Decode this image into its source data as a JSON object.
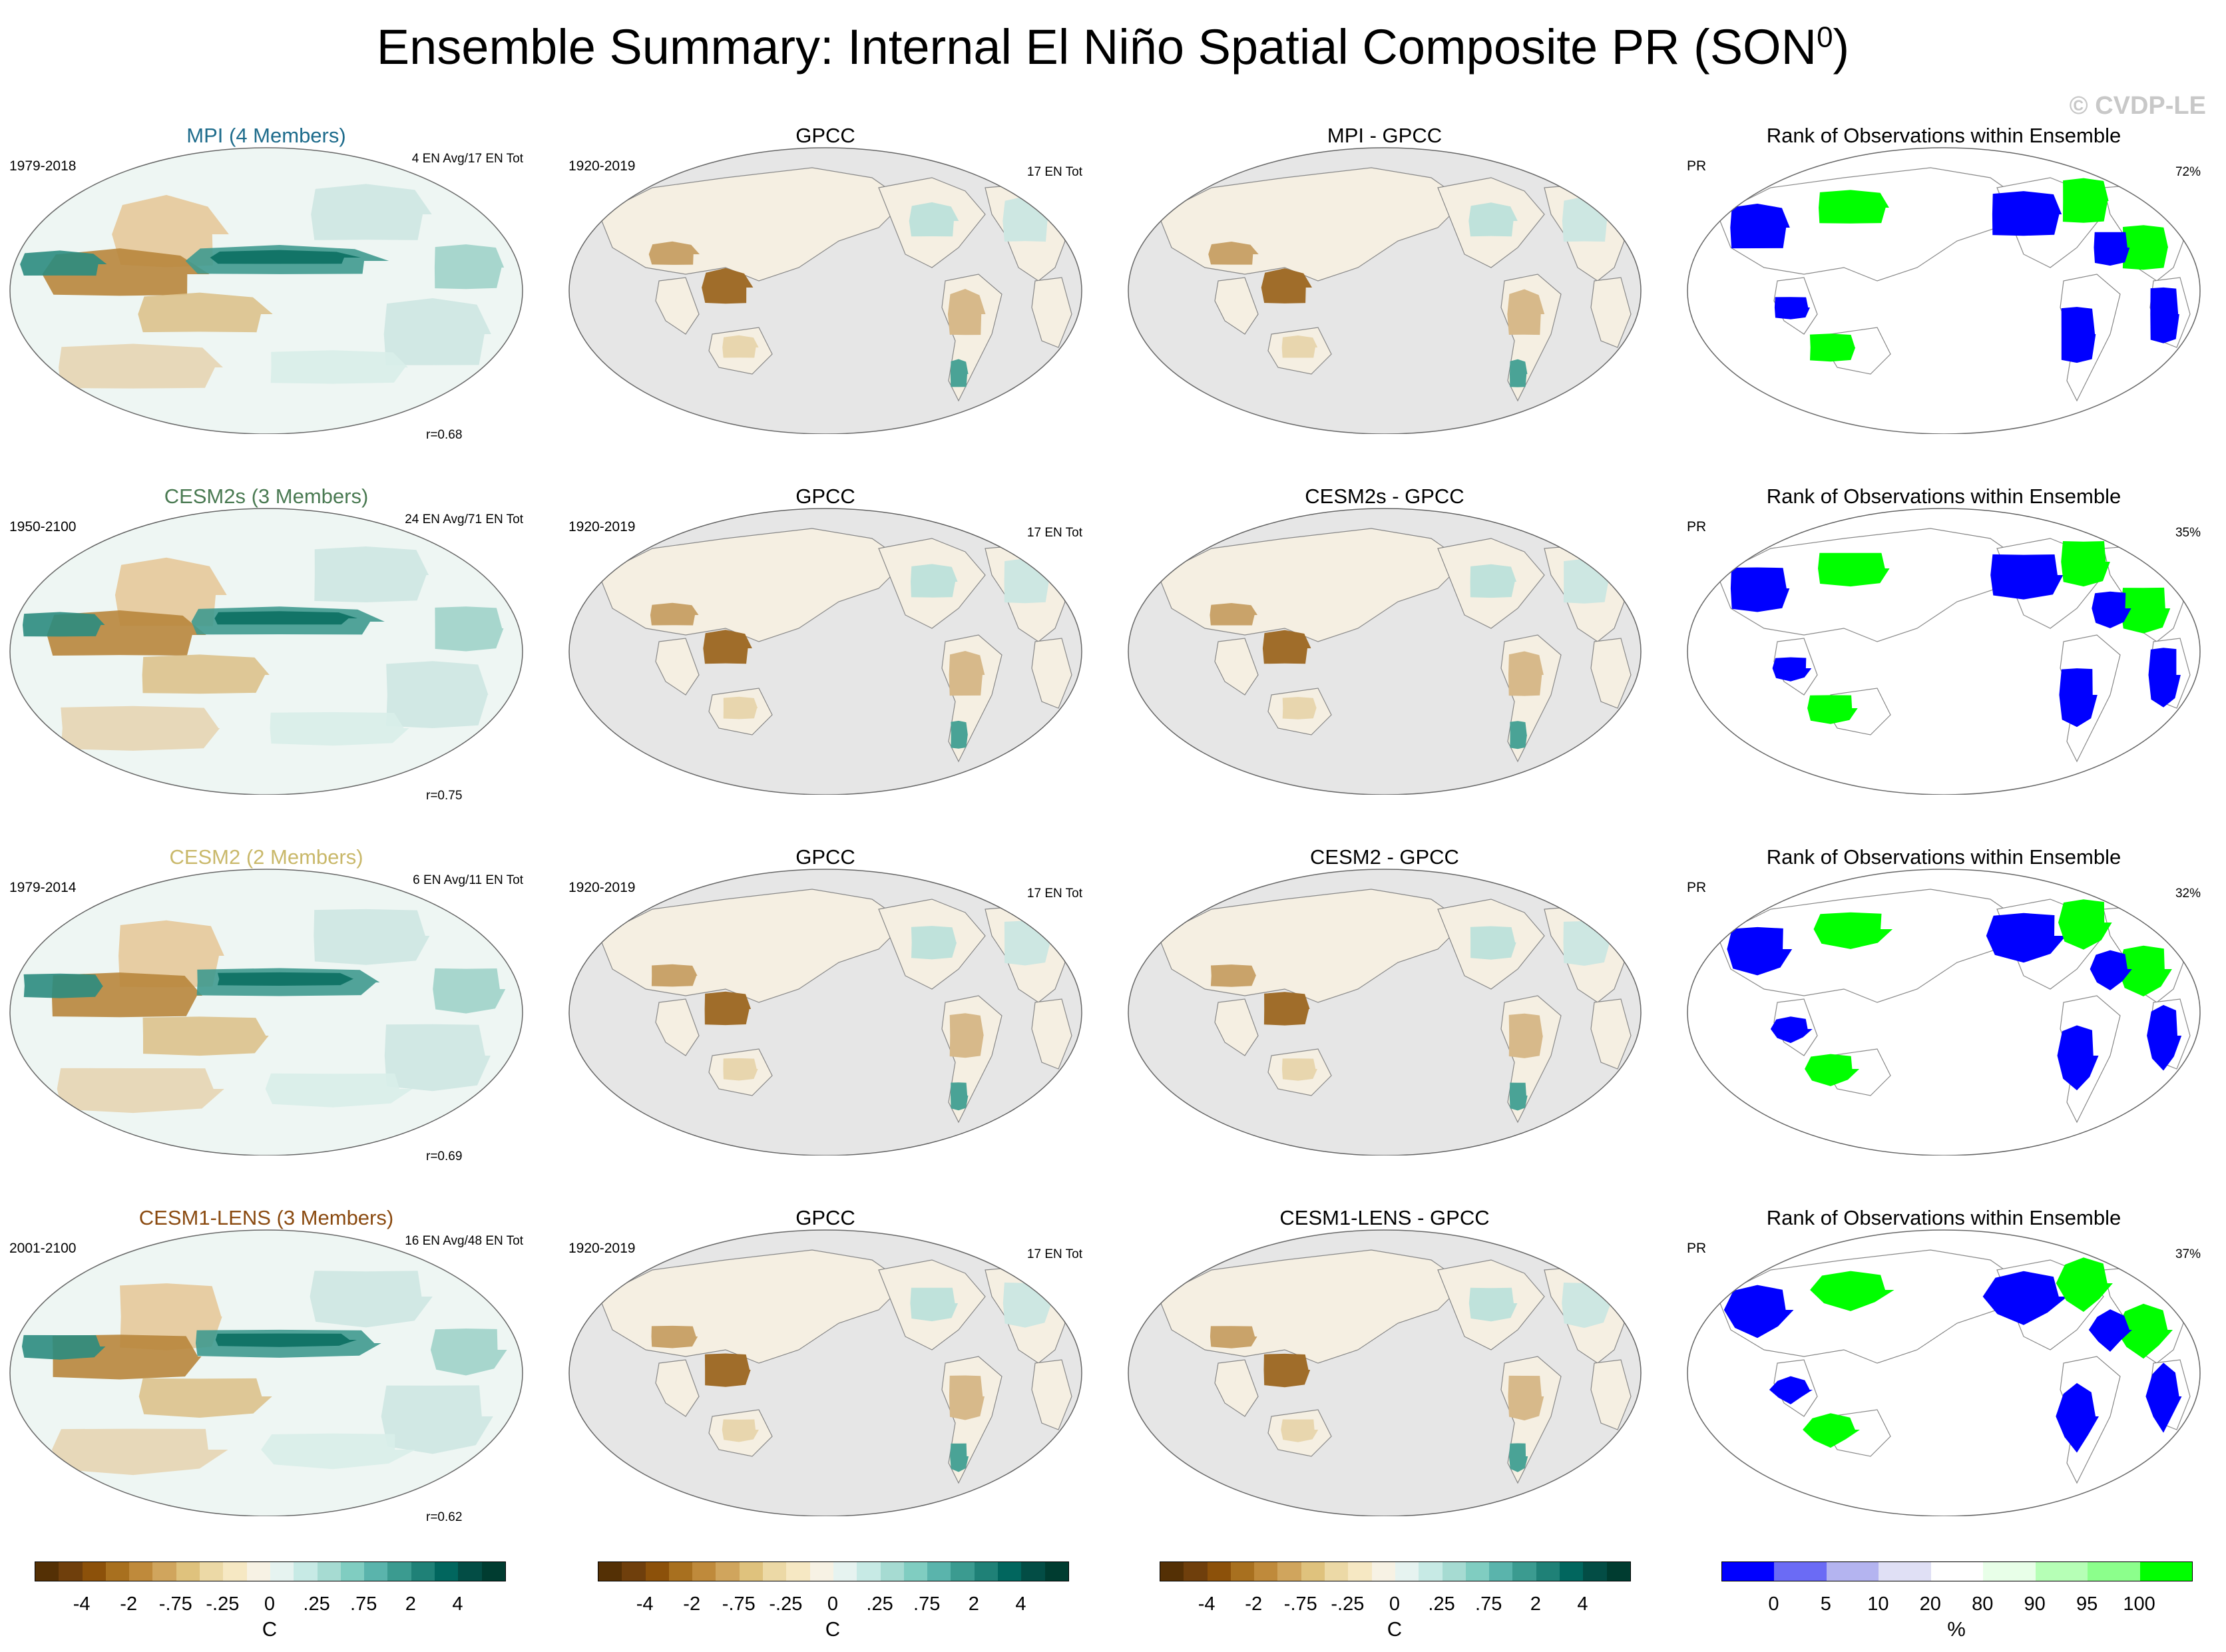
{
  "title": {
    "text": "Ensemble Summary: Internal El Niño Spatial Composite PR (SON",
    "sup": "0",
    "close": ")"
  },
  "watermark": "© CVDP-LE",
  "rows": [
    {
      "model": {
        "title": "MPI (4 Members)",
        "title_color": "#1e6c8c",
        "period": "1979-2018",
        "count": "4 EN Avg/17 EN Tot",
        "corr": "r=0.68"
      },
      "obs": {
        "title": "GPCC",
        "period": "1920-2019",
        "count": "17 EN Tot"
      },
      "diff": {
        "title": "MPI - GPCC"
      },
      "rank": {
        "title": "Rank of Observations within Ensemble",
        "var": "PR",
        "pct": "72%"
      }
    },
    {
      "model": {
        "title": "CESM2s (3 Members)",
        "title_color": "#4a7a52",
        "period": "1950-2100",
        "count": "24 EN Avg/71 EN Tot",
        "corr": "r=0.75"
      },
      "obs": {
        "title": "GPCC",
        "period": "1920-2019",
        "count": "17 EN Tot"
      },
      "diff": {
        "title": "CESM2s - GPCC"
      },
      "rank": {
        "title": "Rank of Observations within Ensemble",
        "var": "PR",
        "pct": "35%"
      }
    },
    {
      "model": {
        "title": "CESM2 (2 Members)",
        "title_color": "#c9b86a",
        "period": "1979-2014",
        "count": "6 EN Avg/11 EN Tot",
        "corr": "r=0.69"
      },
      "obs": {
        "title": "GPCC",
        "period": "1920-2019",
        "count": "17 EN Tot"
      },
      "diff": {
        "title": "CESM2 - GPCC"
      },
      "rank": {
        "title": "Rank of Observations within Ensemble",
        "var": "PR",
        "pct": "32%"
      }
    },
    {
      "model": {
        "title": "CESM1-LENS (3 Members)",
        "title_color": "#8a4a10",
        "period": "2001-2100",
        "count": "16 EN Avg/48 EN Tot",
        "corr": "r=0.62"
      },
      "obs": {
        "title": "GPCC",
        "period": "1920-2019",
        "count": "17 EN Tot"
      },
      "diff": {
        "title": "CESM1-LENS - GPCC"
      },
      "rank": {
        "title": "Rank of Observations within Ensemble",
        "var": "PR",
        "pct": "37%"
      }
    }
  ],
  "colorbars": {
    "brbg": {
      "colors": [
        "#543005",
        "#6f3f0c",
        "#8c510a",
        "#a8701f",
        "#bf8a3b",
        "#d0a55d",
        "#dfc27d",
        "#ecd9a6",
        "#f6e8c3",
        "#f7f2e4",
        "#e6f3f0",
        "#c7eae5",
        "#a6dbd2",
        "#80cdc1",
        "#5ab4ac",
        "#3b9b90",
        "#1f8177",
        "#01665e",
        "#034d45",
        "#003c30"
      ],
      "ticks": [
        "-4",
        "-2",
        "-.75",
        "-.25",
        "0",
        ".25",
        ".75",
        "2",
        "4"
      ],
      "unit": "C"
    },
    "rank": {
      "colors": [
        "#0000ff",
        "#6b6bf5",
        "#b4b4f0",
        "#e0e0f5",
        "#ffffff",
        "#e8ffe8",
        "#b6ffb6",
        "#8cff8c",
        "#00ff00"
      ],
      "ticks": [
        "0",
        "5",
        "10",
        "20",
        "80",
        "90",
        "95",
        "100"
      ],
      "unit": "%"
    }
  }
}
